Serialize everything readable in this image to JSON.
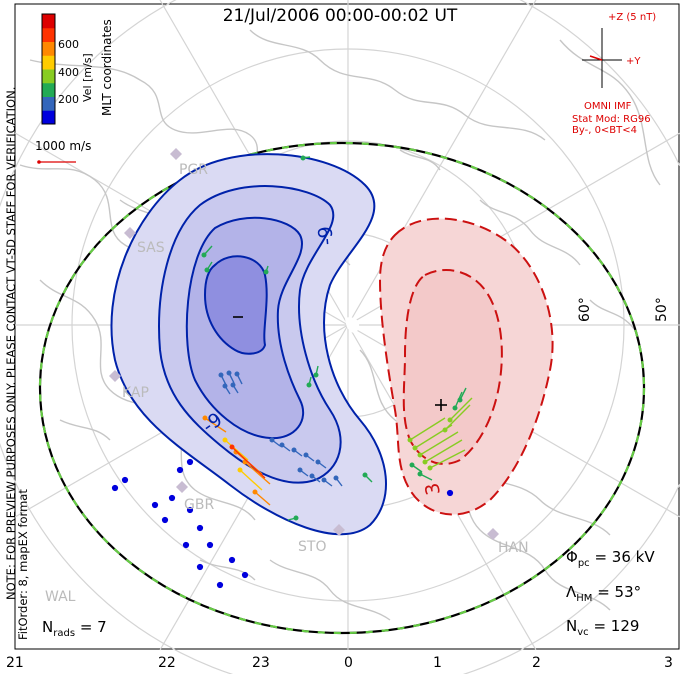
{
  "title": "21/Jul/2006 00:00-00:02 UT",
  "colorbar": {
    "axis_label": "Vel [m/s]",
    "tick_labels": [
      "200",
      "400",
      "600"
    ],
    "colors": [
      "#0000dd",
      "#3366bb",
      "#22aa55",
      "#88cc22",
      "#ffcc00",
      "#ff8800",
      "#ff3300",
      "#dd0000"
    ]
  },
  "coord_label": "MLT coordinates",
  "scale_vector": {
    "label": "1000 m/s"
  },
  "note_line1": "NOTE: FOR PREVIEW PURPOSES ONLY. PLEASE CONTACT VT-SD STAFF FOR VERIFICATION.",
  "note_line2": "FitOrder: 8,  mapEX format",
  "imf": {
    "z_label": "+Z (5 nT)",
    "y_label": "+Y",
    "source": "OMNI IMF",
    "model": "Stat Mod: RG96",
    "condition": "By-,  0<BT<4"
  },
  "latitude_labels": [
    "60°",
    "50°"
  ],
  "stations": [
    "PGR",
    "SAS",
    "KAP",
    "GBR",
    "STO",
    "HAN",
    "WAL"
  ],
  "contour_labels": {
    "negative": "-9",
    "positive": "3"
  },
  "extrema": {
    "min_marker": "–",
    "max_marker": "+"
  },
  "stats": {
    "phi_pc": "Φpc = 36 kV",
    "phi_sym": "Φ",
    "phi_sub": "pc",
    "phi_val": "= 36 kV",
    "lambda_sym": "Λ",
    "lambda_sub": "HM",
    "lambda_val": "= 53°",
    "nvc_sym": "N",
    "nvc_sub": "vc",
    "nvc_val": "= 129",
    "nrads_sym": "N",
    "nrads_sub": "rads",
    "nrads_val": "= 7"
  },
  "mlt_axis": [
    "21",
    "22",
    "23",
    "0",
    "1",
    "2",
    "3"
  ],
  "colors": {
    "negative_contour": "#0022aa",
    "positive_contour": "#cc1111",
    "negative_fill": "#c8c8ee",
    "positive_fill": "#f6d4d4",
    "hmb": "#66cc44",
    "coast": "#c8c8c8",
    "grid": "#d8d8d8"
  }
}
